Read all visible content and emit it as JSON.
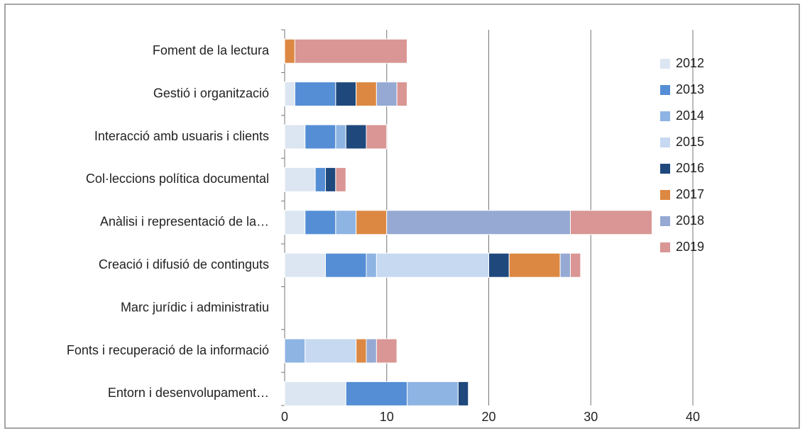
{
  "chart_data": {
    "type": "bar",
    "orientation": "horizontal",
    "stacked": true,
    "categories": [
      "Foment de la lectura",
      "Gestió i organització",
      "Interacció amb usuaris i clients",
      "Col·leccions política documental",
      "Anàlisi i representació de la…",
      "Creació i difusió de continguts",
      "Marc jurídic i administratiu",
      "Fonts i recuperació de la informació",
      "Entorn i desenvolupament…"
    ],
    "series": [
      {
        "name": "2012",
        "color": "#dce6f2",
        "values": [
          0,
          1,
          2,
          3,
          2,
          4,
          0,
          0,
          6
        ]
      },
      {
        "name": "2013",
        "color": "#558ed5",
        "values": [
          0,
          4,
          3,
          1,
          3,
          4,
          0,
          0,
          6
        ]
      },
      {
        "name": "2014",
        "color": "#8eb4e3",
        "values": [
          0,
          0,
          1,
          0,
          2,
          1,
          0,
          2,
          5
        ]
      },
      {
        "name": "2015",
        "color": "#c6d9f1",
        "values": [
          0,
          0,
          0,
          0,
          0,
          11,
          0,
          5,
          0
        ]
      },
      {
        "name": "2016",
        "color": "#1f497d",
        "values": [
          0,
          2,
          2,
          1,
          0,
          2,
          0,
          0,
          1
        ]
      },
      {
        "name": "2017",
        "color": "#dd8842",
        "values": [
          1,
          2,
          0,
          0,
          3,
          5,
          0,
          1,
          0
        ]
      },
      {
        "name": "2018",
        "color": "#95a9d3",
        "values": [
          0,
          2,
          0,
          0,
          18,
          1,
          0,
          1,
          0
        ]
      },
      {
        "name": "2019",
        "color": "#d99694",
        "values": [
          11,
          1,
          2,
          1,
          8,
          1,
          0,
          2,
          0
        ]
      }
    ],
    "xlim": [
      0,
      40
    ],
    "xticks": [
      0,
      10,
      20,
      30,
      40
    ],
    "grid": true,
    "legend": "right"
  }
}
